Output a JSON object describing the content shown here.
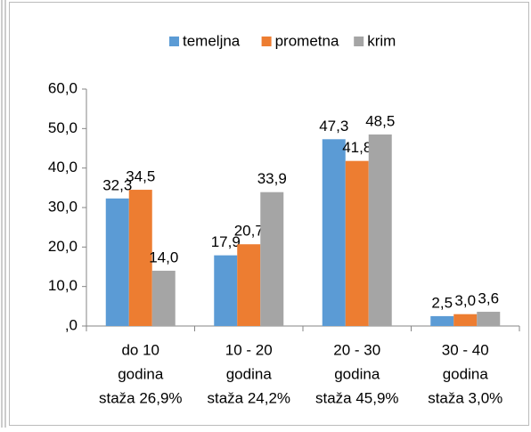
{
  "chart_data": {
    "type": "bar",
    "categories": [
      [
        "do 10",
        "godina",
        "staža 26,9%"
      ],
      [
        "10 - 20",
        "godina",
        "staža 24,2%"
      ],
      [
        "20 - 30",
        "godina",
        "staža 45,9%"
      ],
      [
        "30 - 40",
        "godina",
        "staža 3,0%"
      ]
    ],
    "series": [
      {
        "name": "temeljna",
        "color": "#5b9bd5",
        "values": [
          32.3,
          17.9,
          47.3,
          2.5
        ],
        "value_labels": [
          "32,3",
          "17,9",
          "47,3",
          "2,5"
        ]
      },
      {
        "name": "prometna",
        "color": "#ed7d31",
        "values": [
          34.5,
          20.7,
          41.8,
          3.0
        ],
        "value_labels": [
          "34,5",
          "20,7",
          "41,8",
          "3,0"
        ]
      },
      {
        "name": "krim",
        "color": "#a5a5a5",
        "values": [
          14.0,
          33.9,
          48.5,
          3.6
        ],
        "value_labels": [
          "14,0",
          "33,9",
          "48,5",
          "3,6"
        ]
      }
    ],
    "ylim": [
      0,
      60
    ],
    "yticks": [
      {
        "value": 0,
        "label": ",0"
      },
      {
        "value": 10,
        "label": "10,0"
      },
      {
        "value": 20,
        "label": "20,0"
      },
      {
        "value": 30,
        "label": "30,0"
      },
      {
        "value": 40,
        "label": "40,0"
      },
      {
        "value": 50,
        "label": "50,0"
      },
      {
        "value": 60,
        "label": "60,0"
      }
    ],
    "legend": "top"
  }
}
